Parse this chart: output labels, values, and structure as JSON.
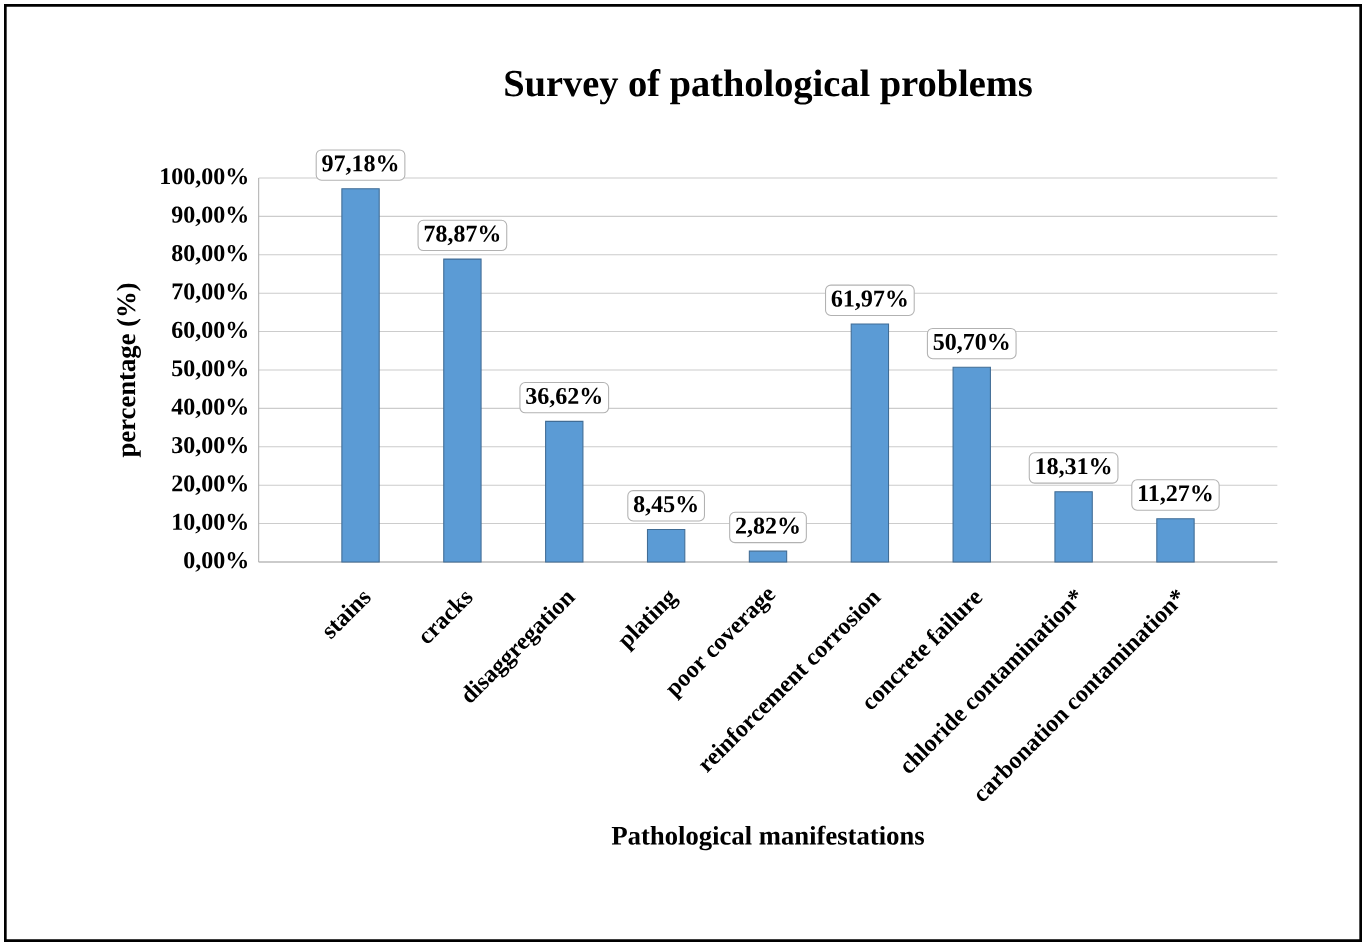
{
  "chart_data": {
    "type": "bar",
    "title": "Survey of pathological problems",
    "xlabel": "Pathological manifestations",
    "ylabel": "percentage (%)",
    "categories": [
      "stains",
      "cracks",
      "disaggregation",
      "plating",
      "poor coverage",
      "reinforcement corrosion",
      "concrete failure",
      "chloride contamination*",
      "carbonation contamination*"
    ],
    "values": [
      97.18,
      78.87,
      36.62,
      8.45,
      2.82,
      61.97,
      50.7,
      18.31,
      11.27
    ],
    "value_labels": [
      "97,18%",
      "78,87%",
      "36,62%",
      "8,45%",
      "2,82%",
      "61,97%",
      "50,70%",
      "18,31%",
      "11,27%"
    ],
    "color": "#5b9bd5",
    "ylim": [
      0,
      100
    ],
    "yticks": [
      {
        "value": 0,
        "label": "0,00%"
      },
      {
        "value": 10,
        "label": "10,00%"
      },
      {
        "value": 20,
        "label": "20,00%"
      },
      {
        "value": 30,
        "label": "30,00%"
      },
      {
        "value": 40,
        "label": "40,00%"
      },
      {
        "value": 50,
        "label": "50,00%"
      },
      {
        "value": 60,
        "label": "60,00%"
      },
      {
        "value": 70,
        "label": "70,00%"
      },
      {
        "value": 80,
        "label": "80,00%"
      },
      {
        "value": 90,
        "label": "90,00%"
      },
      {
        "value": 100,
        "label": "100,00%"
      }
    ],
    "grid": "y"
  }
}
